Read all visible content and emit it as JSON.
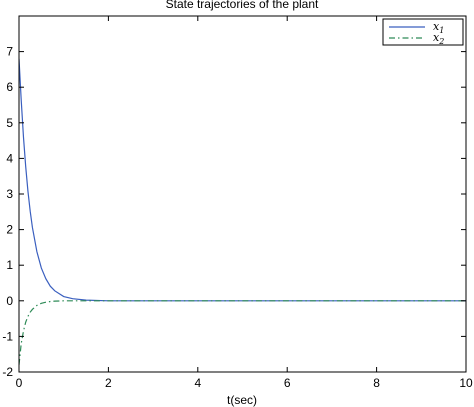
{
  "chart_data": {
    "type": "line",
    "title": "State trajectories of the plant",
    "xlabel": "t(sec)",
    "ylabel": "",
    "xlim": [
      0,
      10
    ],
    "ylim": [
      -2,
      8
    ],
    "xticks": [
      0,
      2,
      4,
      6,
      8,
      10
    ],
    "yticks": [
      -2,
      -1,
      0,
      1,
      2,
      3,
      4,
      5,
      6,
      7
    ],
    "grid": false,
    "legend_position": "top-right",
    "series": [
      {
        "name": "x1",
        "legend_symbol": "x",
        "legend_subscript": "1",
        "color": "#3a5fbf",
        "style": "solid",
        "x": [
          0,
          0.05,
          0.1,
          0.15,
          0.2,
          0.25,
          0.3,
          0.4,
          0.5,
          0.6,
          0.7,
          0.8,
          1.0,
          1.2,
          1.5,
          2,
          3,
          4,
          5,
          6,
          7,
          8,
          9,
          10
        ],
        "y": [
          6.8,
          5.63,
          4.6,
          3.77,
          3.08,
          2.52,
          2.06,
          1.38,
          0.92,
          0.62,
          0.41,
          0.28,
          0.12,
          0.06,
          0.02,
          0,
          0,
          0,
          0,
          0,
          0,
          0,
          0,
          0
        ]
      },
      {
        "name": "x2",
        "legend_symbol": "x",
        "legend_subscript": "2",
        "color": "#2e8b57",
        "style": "dashdot",
        "x": [
          0,
          0.05,
          0.1,
          0.15,
          0.2,
          0.25,
          0.3,
          0.4,
          0.5,
          0.6,
          0.7,
          0.8,
          1.0,
          1.2,
          1.5,
          2,
          3,
          4,
          5,
          6,
          7,
          8,
          9,
          10
        ],
        "y": [
          -1.8,
          -1.2,
          -0.85,
          -0.6,
          -0.44,
          -0.32,
          -0.24,
          -0.13,
          -0.07,
          -0.04,
          -0.02,
          -0.01,
          0,
          0,
          0,
          0,
          0,
          0,
          0,
          0,
          0,
          0,
          0,
          0
        ]
      }
    ]
  }
}
